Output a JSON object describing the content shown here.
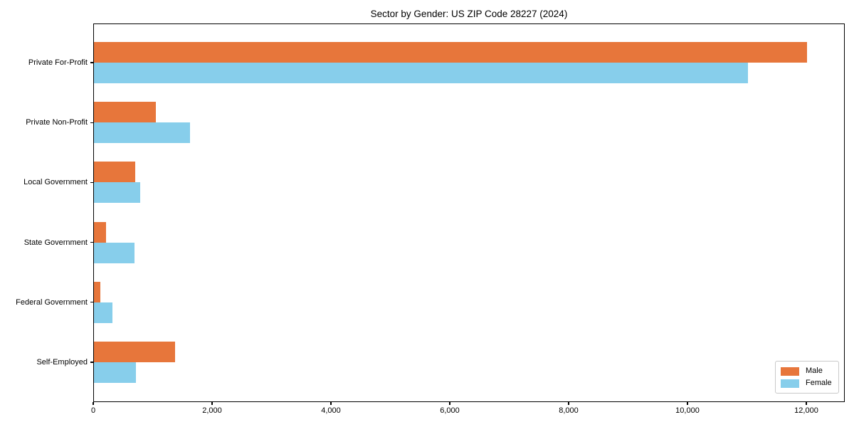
{
  "chart_data": {
    "type": "bar",
    "orientation": "horizontal",
    "title": "Sector by Gender: US ZIP Code 28227 (2024)",
    "categories": [
      "Private For-Profit",
      "Private Non-Profit",
      "Local Government",
      "State Government",
      "Federal Government",
      "Self-Employed"
    ],
    "series": [
      {
        "name": "Male",
        "color": "#e7763b",
        "values": [
          12000,
          1040,
          700,
          200,
          110,
          1370
        ]
      },
      {
        "name": "Female",
        "color": "#87ceeb",
        "values": [
          11000,
          1620,
          780,
          680,
          310,
          710
        ]
      }
    ],
    "xlabel": "",
    "ylabel": "",
    "xlim": [
      0,
      12650
    ],
    "xticks": [
      0,
      2000,
      4000,
      6000,
      8000,
      10000,
      12000
    ],
    "xtick_labels": [
      "0",
      "2,000",
      "4,000",
      "6,000",
      "8,000",
      "10,000",
      "12,000"
    ],
    "grid": false,
    "legend": {
      "position": "lower right",
      "items": [
        {
          "label": "Male"
        },
        {
          "label": "Female"
        }
      ]
    }
  }
}
